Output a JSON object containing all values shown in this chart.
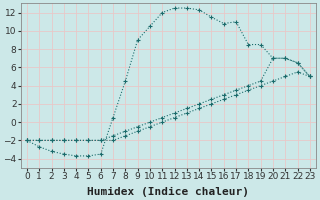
{
  "xlabel": "Humidex (Indice chaleur)",
  "background_color": "#cce8e8",
  "grid_color": "#aacccc",
  "line_color": "#1a6b6b",
  "xlim": [
    -0.5,
    23.5
  ],
  "ylim": [
    -5,
    13
  ],
  "xticks": [
    0,
    1,
    2,
    3,
    4,
    5,
    6,
    7,
    8,
    9,
    10,
    11,
    12,
    13,
    14,
    15,
    16,
    17,
    18,
    19,
    20,
    21,
    22,
    23
  ],
  "yticks": [
    -4,
    -2,
    0,
    2,
    4,
    6,
    8,
    10,
    12
  ],
  "line1_x": [
    0,
    1,
    2,
    3,
    4,
    5,
    6,
    7,
    8,
    9,
    10,
    11,
    12,
    13,
    14,
    15,
    16,
    17,
    18,
    19,
    20,
    21,
    22,
    23
  ],
  "line1_y": [
    -2,
    -2.7,
    -3.2,
    -3.5,
    -3.7,
    -3.7,
    -3.5,
    0.5,
    4.5,
    9,
    10.5,
    12,
    12.5,
    12.5,
    12.3,
    11.5,
    10.8,
    11,
    8.5,
    8.5,
    7,
    7,
    6.5,
    5
  ],
  "line2_x": [
    0,
    1,
    2,
    3,
    4,
    5,
    6,
    7,
    8,
    9,
    10,
    11,
    12,
    13,
    14,
    15,
    16,
    17,
    18,
    19,
    20,
    21,
    22,
    23
  ],
  "line2_y": [
    -2,
    -2,
    -2,
    -2,
    -2,
    -2,
    -2,
    -1.5,
    -1.0,
    -0.5,
    0.0,
    0.5,
    1.0,
    1.5,
    2.0,
    2.5,
    3.0,
    3.5,
    4.0,
    4.5,
    7.0,
    7.0,
    6.5,
    5.0
  ],
  "line3_x": [
    0,
    1,
    2,
    3,
    4,
    5,
    6,
    7,
    8,
    9,
    10,
    11,
    12,
    13,
    14,
    15,
    16,
    17,
    18,
    19,
    20,
    21,
    22,
    23
  ],
  "line3_y": [
    -2,
    -2,
    -2,
    -2,
    -2,
    -2,
    -2,
    -2,
    -1.5,
    -1.0,
    -0.5,
    0.0,
    0.5,
    1.0,
    1.5,
    2.0,
    2.5,
    3.0,
    3.5,
    4.0,
    4.5,
    5.0,
    5.5,
    5.0
  ],
  "xlabel_fontsize": 8,
  "tick_fontsize": 6.5
}
